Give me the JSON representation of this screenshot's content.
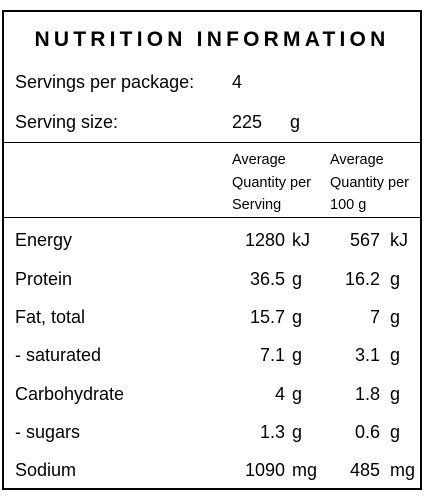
{
  "title": "NUTRITION INFORMATION",
  "servings": {
    "label": "Servings per package:",
    "value": "4"
  },
  "serving_size": {
    "label": "Serving size:",
    "value": "225",
    "unit": "g"
  },
  "columns": {
    "per_serving": [
      "Average",
      "Quantity per",
      "Serving"
    ],
    "per_100g": [
      "Average",
      "Quantity per",
      "100 g"
    ]
  },
  "rows": [
    {
      "label": "Energy",
      "serving": "1280",
      "serving_unit": "kJ",
      "per100": "567",
      "per100_unit": "kJ"
    },
    {
      "label": "Protein",
      "serving": "36.5",
      "serving_unit": "g",
      "per100": "16.2",
      "per100_unit": "g"
    },
    {
      "label": "Fat, total",
      "serving": "15.7",
      "serving_unit": "g",
      "per100": "7",
      "per100_unit": "g"
    },
    {
      "label": "- saturated",
      "serving": "7.1",
      "serving_unit": "g",
      "per100": "3.1",
      "per100_unit": "g"
    },
    {
      "label": "Carbohydrate",
      "serving": "4",
      "serving_unit": "g",
      "per100": "1.8",
      "per100_unit": "g"
    },
    {
      "label": "- sugars",
      "serving": "1.3",
      "serving_unit": "g",
      "per100": "0.6",
      "per100_unit": "g"
    },
    {
      "label": "Sodium",
      "serving": "1090",
      "serving_unit": "mg",
      "per100": "485",
      "per100_unit": "mg"
    }
  ]
}
